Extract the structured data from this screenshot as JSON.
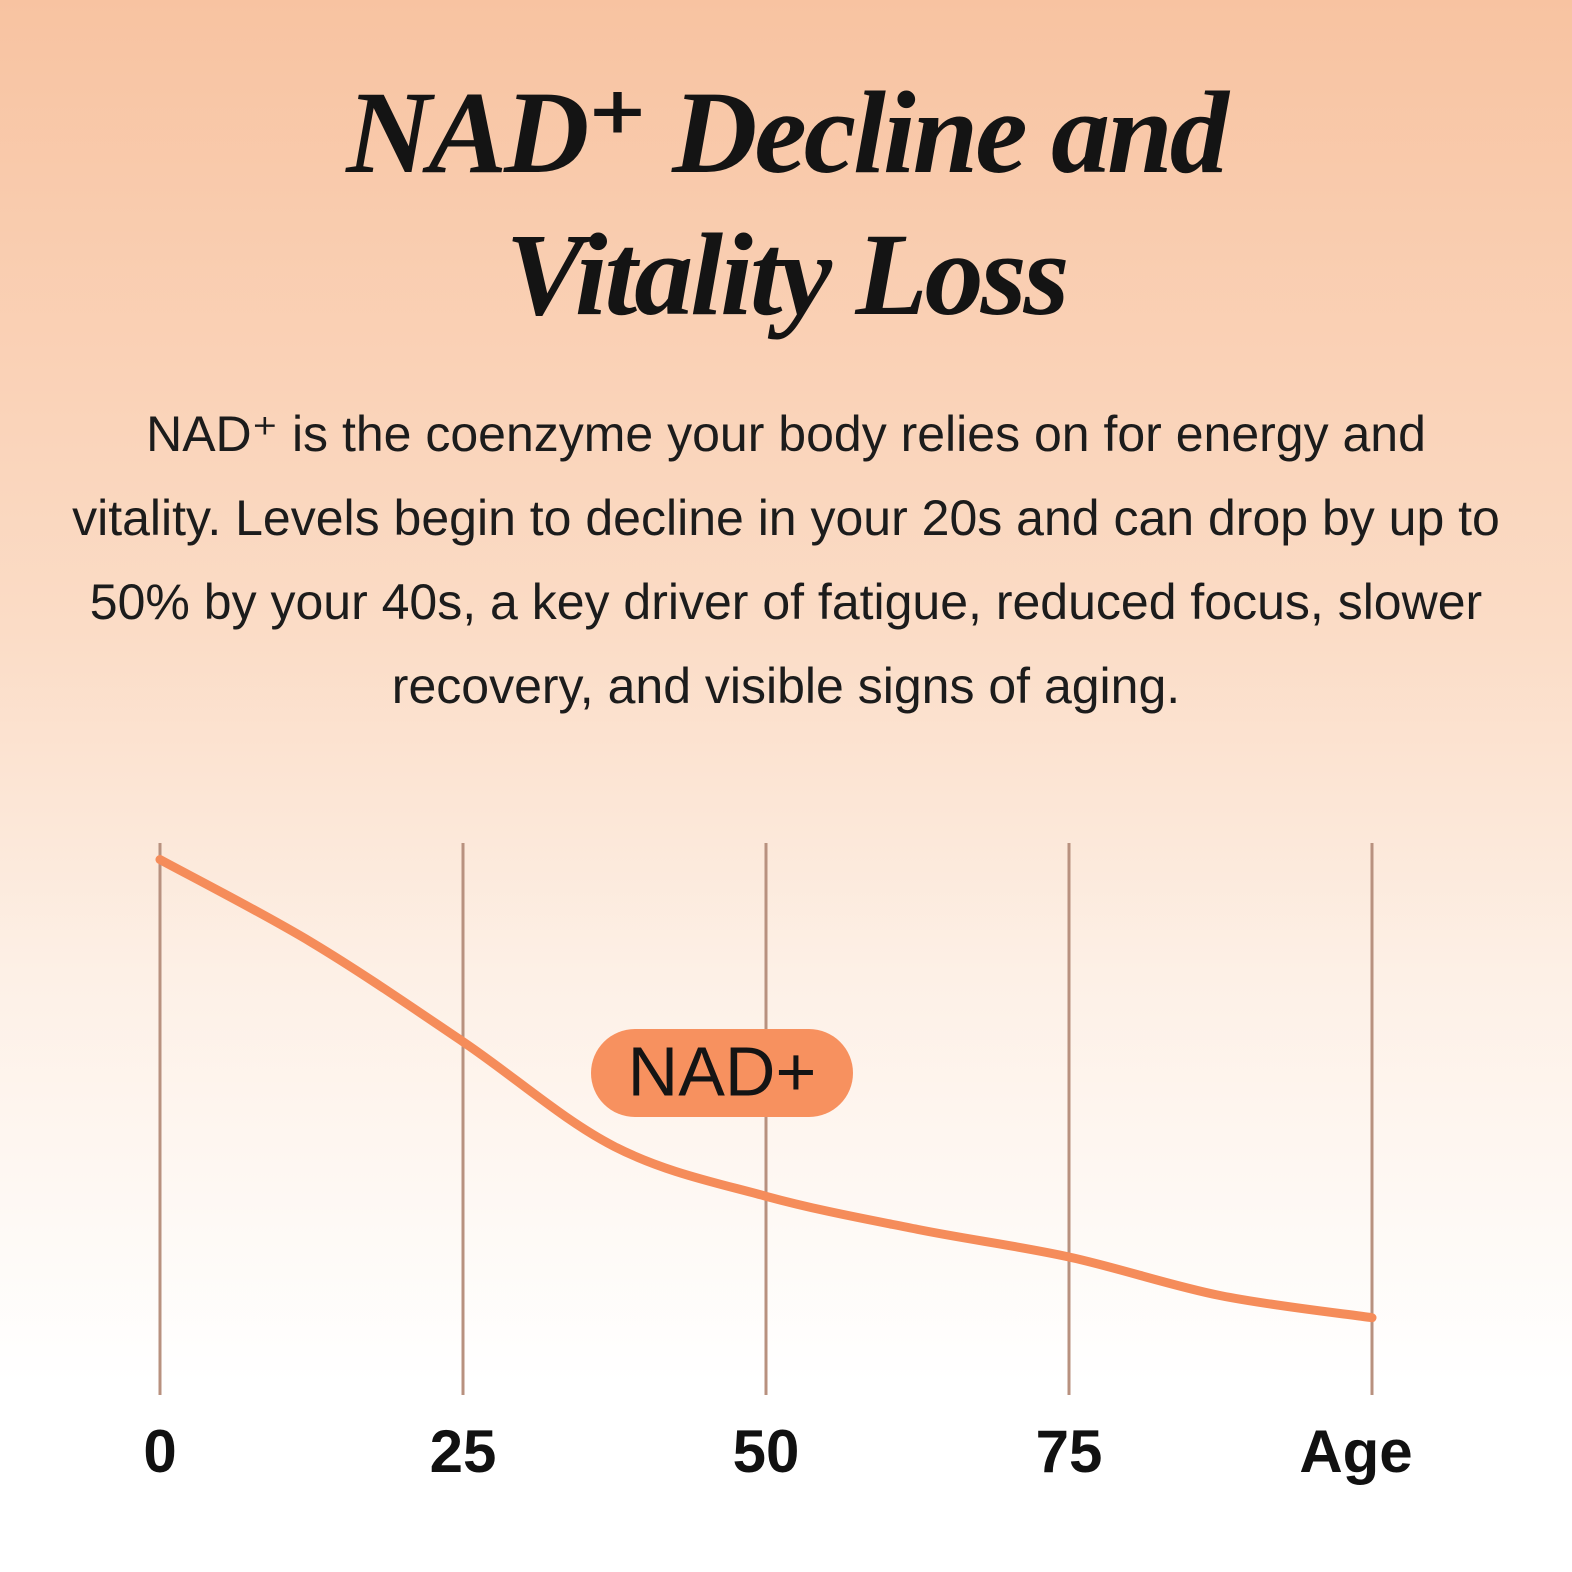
{
  "chart_data": {
    "type": "line",
    "title": "NAD⁺ Decline and Vitality Loss",
    "subtitle": "NAD⁺ is the coenzyme your body relies on for energy and vitality. Levels begin to decline in your 20s and can drop by up to 50% by your 40s, a key driver of fatigue, reduced focus, slower recovery, and visible signs of aging.",
    "annotation": "NAD+",
    "x": [
      0,
      12.5,
      25,
      37.5,
      50,
      62.5,
      75,
      87.5,
      100
    ],
    "values": [
      97,
      82,
      64,
      45,
      36,
      30,
      25,
      18,
      14
    ],
    "color": "#f58c5a",
    "xlim": [
      0,
      100
    ],
    "xticks": [
      0,
      25,
      50,
      75,
      {
        "value": 100,
        "label": "Age"
      }
    ],
    "ylim": [
      0,
      100
    ],
    "grid": true
  }
}
